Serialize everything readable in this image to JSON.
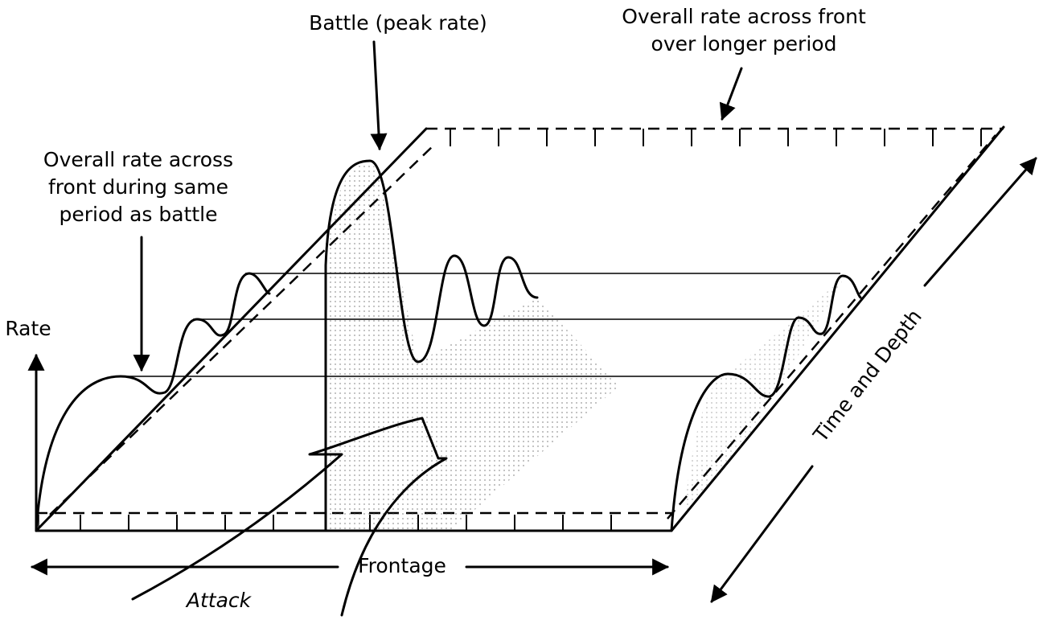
{
  "labels": {
    "battle": "Battle (peak rate)",
    "overall_longer": [
      "Overall rate across front",
      "over longer period"
    ],
    "overall_same": [
      "Overall rate across",
      "front during same",
      "period as battle"
    ],
    "rate": "Rate",
    "frontage": "Frontage",
    "time_depth": "Time and Depth",
    "attack": "Attack"
  }
}
